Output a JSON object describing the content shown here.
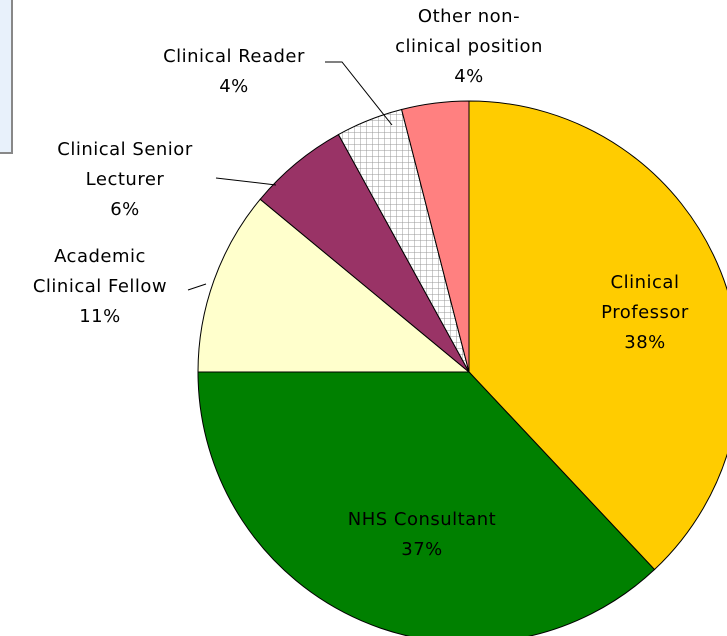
{
  "chart_data": {
    "type": "pie",
    "categories": [
      "Clinical\nProfessor",
      "NHS Consultant",
      "Academic\nClinical Fellow",
      "Clinical Senior\nLecturer",
      "Clinical Reader",
      "Other non-\nclinical position"
    ],
    "values": [
      38,
      37,
      11,
      6,
      4,
      4
    ],
    "value_labels": [
      "38%",
      "37%",
      "11%",
      "6%",
      "4%",
      "4%"
    ],
    "colors": [
      "#ffcc00",
      "#008000",
      "#ffffcc",
      "#993366",
      "hatch",
      "#ff8080"
    ]
  }
}
